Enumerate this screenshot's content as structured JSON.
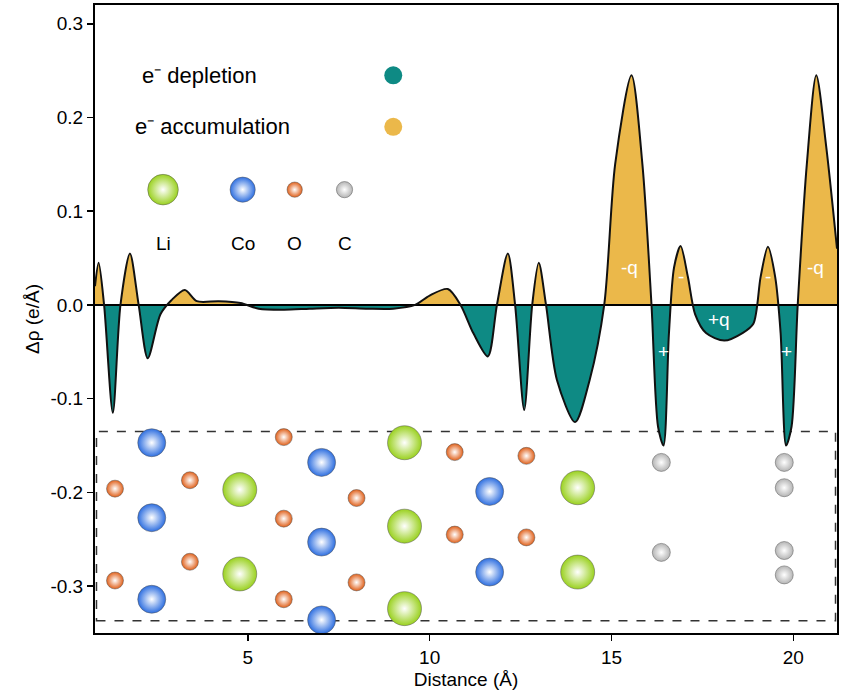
{
  "chart_data": {
    "type": "area",
    "x_label": "Distance (Å)",
    "y_label": "Δρ (e/Å)",
    "x": [
      0.8,
      0.9,
      1.05,
      1.29,
      1.5,
      1.76,
      2.0,
      2.25,
      2.6,
      2.9,
      3.27,
      3.6,
      4.2,
      4.8,
      5.3,
      6.0,
      6.7,
      7.5,
      8.3,
      9.0,
      9.6,
      10.0,
      10.5,
      10.85,
      11.2,
      11.6,
      11.85,
      12.15,
      12.35,
      12.6,
      12.82,
      13.0,
      13.2,
      13.5,
      14.0,
      14.4,
      14.8,
      15.1,
      15.55,
      15.85,
      16.1,
      16.28,
      16.43,
      16.58,
      16.72,
      16.9,
      17.1,
      17.3,
      17.6,
      18.1,
      18.6,
      18.9,
      19.1,
      19.3,
      19.5,
      19.65,
      19.8,
      19.95,
      20.12,
      20.37,
      20.63,
      20.9,
      21.2
    ],
    "values": [
      0.02,
      0.045,
      0.0,
      -0.115,
      0.0,
      0.055,
      0.0,
      -0.057,
      -0.01,
      0.005,
      0.016,
      0.004,
      0.004,
      0.002,
      -0.004,
      -0.005,
      -0.004,
      -0.003,
      -0.004,
      -0.004,
      0.0,
      0.01,
      0.017,
      0.0,
      -0.03,
      -0.055,
      0.0,
      0.055,
      0.0,
      -0.112,
      0.0,
      0.045,
      0.0,
      -0.08,
      -0.125,
      -0.08,
      0.0,
      0.15,
      0.245,
      0.15,
      0.0,
      -0.13,
      -0.15,
      -0.03,
      0.04,
      0.063,
      0.03,
      -0.01,
      -0.03,
      -0.038,
      -0.03,
      -0.02,
      0.03,
      0.062,
      0.03,
      -0.03,
      -0.15,
      -0.13,
      0.0,
      0.15,
      0.245,
      0.17,
      0.06
    ],
    "color": "#111111",
    "legend_items": [
      {
        "label": "e⁻ depletion",
        "color": "#0e8a84"
      },
      {
        "label": "e⁻ accumulation",
        "color": "#ebb84a"
      }
    ],
    "legend": "upper left",
    "atom_legend": [
      {
        "label": "Li",
        "color": "#9ad11f"
      },
      {
        "label": "Co",
        "color": "#2d6ee0"
      },
      {
        "label": "O",
        "color": "#e0601a"
      },
      {
        "label": "C",
        "color": "#b4b4b4"
      }
    ],
    "structure": [
      {
        "element": "Co",
        "x": 2.36,
        "y": -0.147
      },
      {
        "element": "Co",
        "x": 2.36,
        "y": -0.227
      },
      {
        "element": "Co",
        "x": 2.36,
        "y": -0.314
      },
      {
        "element": "Co",
        "x": 7.03,
        "y": -0.168
      },
      {
        "element": "Co",
        "x": 7.03,
        "y": -0.253
      },
      {
        "element": "Co",
        "x": 7.03,
        "y": -0.336
      },
      {
        "element": "Co",
        "x": 11.65,
        "y": -0.199
      },
      {
        "element": "Co",
        "x": 11.65,
        "y": -0.285
      },
      {
        "element": "O",
        "x": 1.35,
        "y": -0.196
      },
      {
        "element": "O",
        "x": 1.35,
        "y": -0.294
      },
      {
        "element": "O",
        "x": 3.41,
        "y": -0.187
      },
      {
        "element": "O",
        "x": 3.41,
        "y": -0.274
      },
      {
        "element": "O",
        "x": 5.99,
        "y": -0.141
      },
      {
        "element": "O",
        "x": 5.99,
        "y": -0.228
      },
      {
        "element": "O",
        "x": 5.99,
        "y": -0.314
      },
      {
        "element": "O",
        "x": 7.99,
        "y": -0.206
      },
      {
        "element": "O",
        "x": 7.99,
        "y": -0.296
      },
      {
        "element": "O",
        "x": 10.69,
        "y": -0.157
      },
      {
        "element": "O",
        "x": 10.69,
        "y": -0.245
      },
      {
        "element": "O",
        "x": 12.66,
        "y": -0.161
      },
      {
        "element": "O",
        "x": 12.66,
        "y": -0.248
      },
      {
        "element": "Li",
        "x": 4.78,
        "y": -0.197
      },
      {
        "element": "Li",
        "x": 4.78,
        "y": -0.287
      },
      {
        "element": "Li",
        "x": 9.31,
        "y": -0.147
      },
      {
        "element": "Li",
        "x": 9.31,
        "y": -0.236
      },
      {
        "element": "Li",
        "x": 9.31,
        "y": -0.324
      },
      {
        "element": "Li",
        "x": 14.07,
        "y": -0.195
      },
      {
        "element": "Li",
        "x": 14.07,
        "y": -0.285
      },
      {
        "element": "C",
        "x": 16.37,
        "y": -0.168
      },
      {
        "element": "C",
        "x": 16.37,
        "y": -0.264
      },
      {
        "element": "C",
        "x": 19.75,
        "y": -0.168
      },
      {
        "element": "C",
        "x": 19.75,
        "y": -0.195
      },
      {
        "element": "C",
        "x": 19.75,
        "y": -0.262
      },
      {
        "element": "C",
        "x": 19.75,
        "y": -0.288
      }
    ],
    "annotations": [
      {
        "text": "-q",
        "x": 15.5,
        "y": 0.04
      },
      {
        "text": "+",
        "x": 16.43,
        "y": -0.05
      },
      {
        "text": "-",
        "x": 16.9,
        "y": 0.03
      },
      {
        "text": "+q",
        "x": 17.95,
        "y": -0.015
      },
      {
        "text": "-",
        "x": 19.3,
        "y": 0.03
      },
      {
        "text": "+",
        "x": 19.8,
        "y": -0.05
      },
      {
        "text": "-q",
        "x": 20.6,
        "y": 0.04
      }
    ],
    "xlim": [
      0.8,
      21.2
    ],
    "ylim": [
      -0.35,
      0.32
    ],
    "xticks": [
      5,
      10,
      15,
      20
    ],
    "yticks": [
      -0.3,
      -0.2,
      -0.1,
      {
        "value": 0,
        "label": "0.0"
      },
      0.1,
      0.2,
      0.3
    ],
    "grid": false
  }
}
